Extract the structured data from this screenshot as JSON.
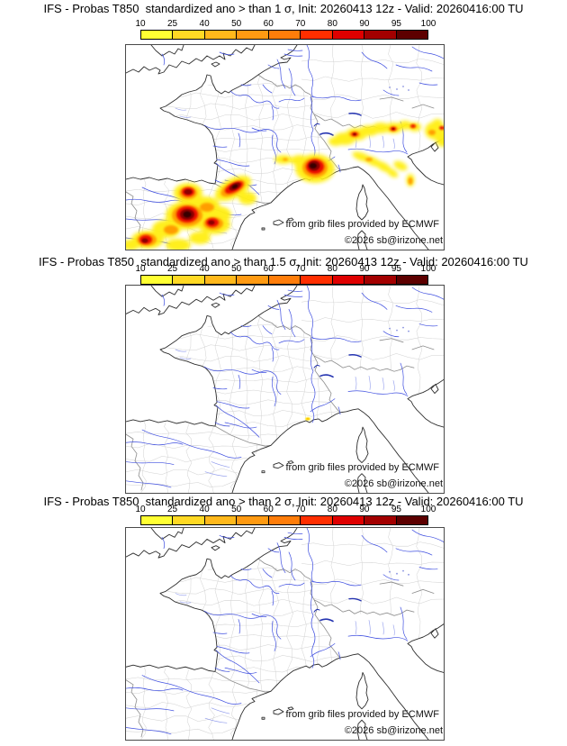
{
  "panels": [
    {
      "title": "IFS - Probas T850  standardized ano > than 1 σ, Init: 20260413 12z - Valid: 20260416:00 TU"
    },
    {
      "title": "IFS - Probas T850  standardized ano > than 1.5 σ, Init: 20260413 12z - Valid: 20260416:00 TU"
    },
    {
      "title": "IFS - Probas T850  standardized ano > than 2 σ, Init: 20260413 12z - Valid: 20260416:00 TU"
    }
  ],
  "colorbar": {
    "tick_labels": [
      "10",
      "25",
      "40",
      "50",
      "60",
      "70",
      "80",
      "90",
      "95",
      "100"
    ],
    "segment_colors": [
      "#ffff33",
      "#ffd924",
      "#ffb81b",
      "#ff9a12",
      "#ff7d0a",
      "#ff2e00",
      "#df0000",
      "#a30000",
      "#5d0000"
    ]
  },
  "map": {
    "attribution": "from grib files provided by ECMWF",
    "copyright": "©2026 sb@irizone.net"
  }
}
